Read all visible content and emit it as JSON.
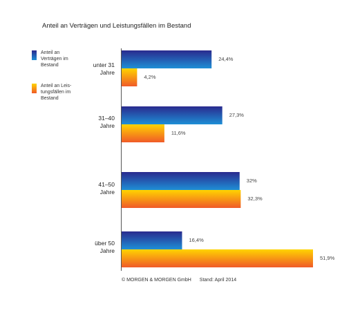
{
  "title": "Anteil an Verträgen und Leistungsfällen im Bestand",
  "footer": {
    "copyright": "© MORGEN & MORGEN GmbH",
    "date": "Stand: April 2014"
  },
  "colors": {
    "contracts_top": "#2a2a8e",
    "contracts_bottom": "#1e8fd6",
    "claims_top": "#ffd400",
    "claims_bottom": "#f05a28"
  },
  "chart_data": {
    "type": "bar",
    "orientation": "horizontal",
    "title": "Anteil an Verträgen und Leistungsfällen im Bestand",
    "categories": [
      "unter 31 Jahre",
      "31–40 Jahre",
      "41–50 Jahre",
      "über 50 Jahre"
    ],
    "category_lines": [
      [
        "unter 31",
        "Jahre"
      ],
      [
        "31–40",
        "Jahre"
      ],
      [
        "41–50",
        "Jahre"
      ],
      [
        "über 50",
        "Jahre"
      ]
    ],
    "series": [
      {
        "name": "Anteil an Verträgen im Bestand",
        "legend_lines": [
          "Anteil an",
          "Verträgen im",
          "Bestand"
        ],
        "values": [
          24.4,
          27.3,
          32,
          16.4
        ],
        "labels": [
          "24,4%",
          "27,3%",
          "32%",
          "16,4%"
        ]
      },
      {
        "name": "Anteil an Leistungsfällen im Bestand",
        "legend_lines": [
          "Anteil an Leis-",
          "tungsfällen im",
          "Bestand"
        ],
        "values": [
          4.2,
          11.6,
          32.3,
          51.9
        ],
        "labels": [
          "4,2%",
          "11,6%",
          "32,3%",
          "51,9%"
        ]
      }
    ],
    "xlim": [
      0,
      51.9
    ],
    "grid": false,
    "legend_position": "left"
  }
}
